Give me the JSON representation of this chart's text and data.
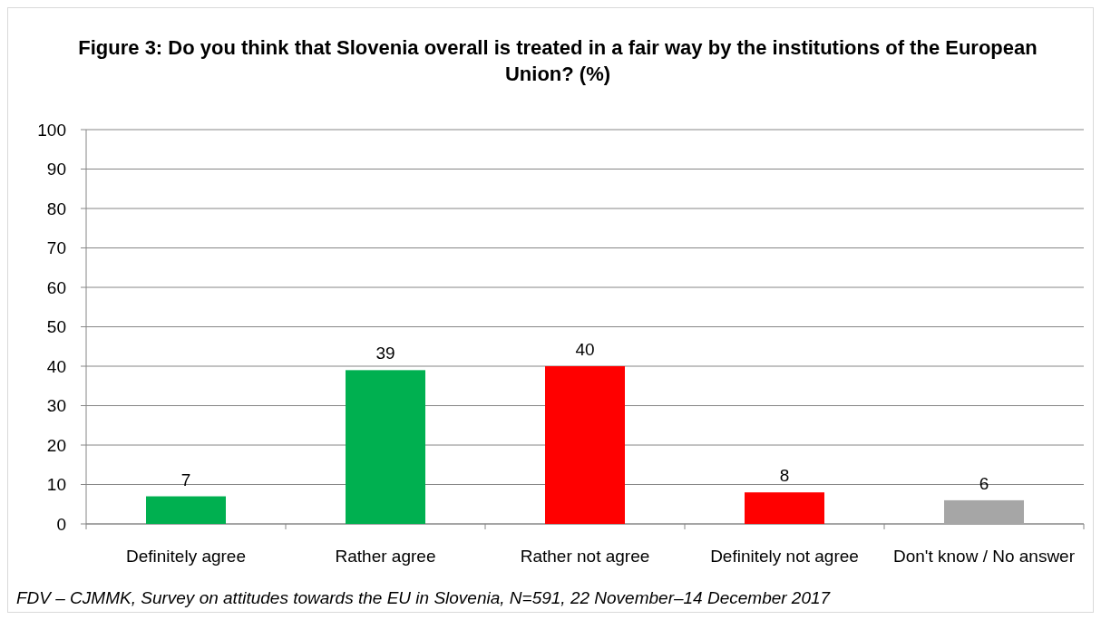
{
  "chart_data": {
    "type": "bar",
    "title": "Figure 3: Do you think that Slovenia overall is treated in a fair way by the institutions of the European Union? (%)",
    "categories": [
      "Definitely agree",
      "Rather agree",
      "Rather not agree",
      "Definitely not agree",
      "Don't know / No answer"
    ],
    "values": [
      7,
      39,
      40,
      8,
      6
    ],
    "colors": [
      "#00b050",
      "#00b050",
      "#ff0000",
      "#ff0000",
      "#a6a6a6"
    ],
    "ylim": [
      0,
      100
    ],
    "yticks": [
      0,
      10,
      20,
      30,
      40,
      50,
      60,
      70,
      80,
      90,
      100
    ],
    "grid": "y",
    "data_labels": true,
    "annotations": [
      "FDV – CJMMK, Survey on attitudes towards the EU in Slovenia, N=591, 22 November–14 December 2017"
    ]
  }
}
